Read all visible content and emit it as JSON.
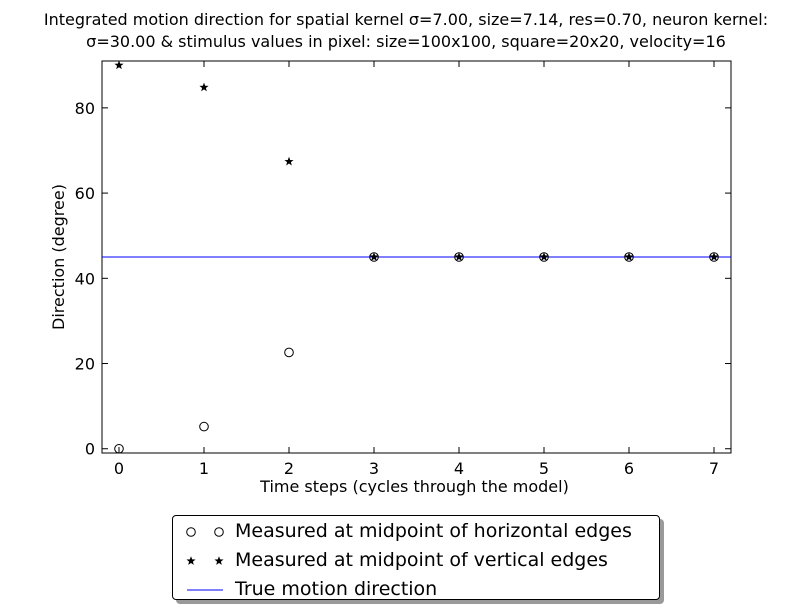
{
  "chart_data": {
    "type": "scatter",
    "title_line1": "Integrated motion direction for spatial kernel σ=7.00, size=7.14, res=0.70, neuron kernel:",
    "title_line2": "σ=30.00 & stimulus values in pixel: size=100x100, square=20x20, velocity=16",
    "xlabel": "Time steps (cycles through the model)",
    "ylabel": "Direction (degree)",
    "xlim": [
      -0.2,
      7.2
    ],
    "ylim": [
      -1,
      91
    ],
    "xticks": [
      0,
      1,
      2,
      3,
      4,
      5,
      6,
      7
    ],
    "yticks": [
      0,
      20,
      40,
      60,
      80
    ],
    "grid": false,
    "legend_position": "bottom-outside",
    "series": [
      {
        "name": "Measured at midpoint of horizontal edges",
        "marker": "circle",
        "x": [
          0,
          1,
          2,
          3,
          4,
          5,
          6,
          7
        ],
        "y": [
          0,
          5.2,
          22.6,
          45,
          45,
          45,
          45,
          45
        ]
      },
      {
        "name": "Measured at midpoint of vertical edges",
        "marker": "star",
        "x": [
          0,
          1,
          2,
          3,
          4,
          5,
          6,
          7
        ],
        "y": [
          90,
          84.8,
          67.4,
          45,
          45,
          45,
          45,
          45
        ]
      },
      {
        "name": "True motion direction",
        "marker": "line",
        "color": "#0000ff",
        "y": 45
      }
    ]
  }
}
